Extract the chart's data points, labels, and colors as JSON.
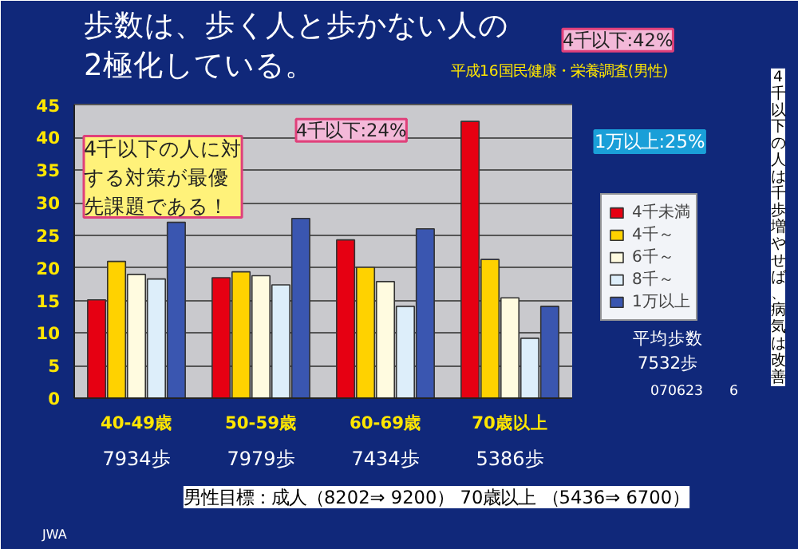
{
  "chart_data": {
    "type": "bar",
    "title": "歩数は、歩く人と歩かない人の\n2極化している。",
    "subtitle": "平成16国民健康・栄養調査(男性)",
    "categories": [
      "40-49歳",
      "50-59歳",
      "60-69歳",
      "70歳以上"
    ],
    "series": [
      {
        "name": "4千未満",
        "color": "#e60012",
        "values": [
          15.1,
          18.5,
          24.3,
          42.5
        ]
      },
      {
        "name": "4千～",
        "color": "#ffd200",
        "values": [
          21,
          19.4,
          20.1,
          21.3
        ]
      },
      {
        "name": "6千～",
        "color": "#fffbe0",
        "values": [
          19.0,
          18.8,
          17.9,
          15.4
        ]
      },
      {
        "name": "8千～",
        "color": "#ddeefa",
        "values": [
          18.3,
          17.4,
          14.1,
          9.2
        ]
      },
      {
        "name": "1万以上",
        "color": "#3a56b0",
        "values": [
          27,
          27.6,
          26.0,
          14.1
        ]
      }
    ],
    "ylim": [
      0,
      45
    ],
    "yticks": [
      0,
      5,
      10,
      15,
      20,
      25,
      30,
      35,
      40,
      45
    ],
    "grid": "y",
    "legend": "right",
    "annotations": [
      "4千以下:24%",
      "4千以下:42%",
      "1万以上:25%",
      "4千以下の人に対する対策が最優先課題である！",
      "7934歩",
      "7979歩",
      "7434歩",
      "5386歩",
      "平均歩数\n7532歩",
      "4千以下の人は千歩増やせば、病気は改善",
      "男性目標：成人（8202⇒ 9200） 70歳以上 （5436⇒ 6700）",
      "JWA",
      "070623",
      "6"
    ]
  }
}
